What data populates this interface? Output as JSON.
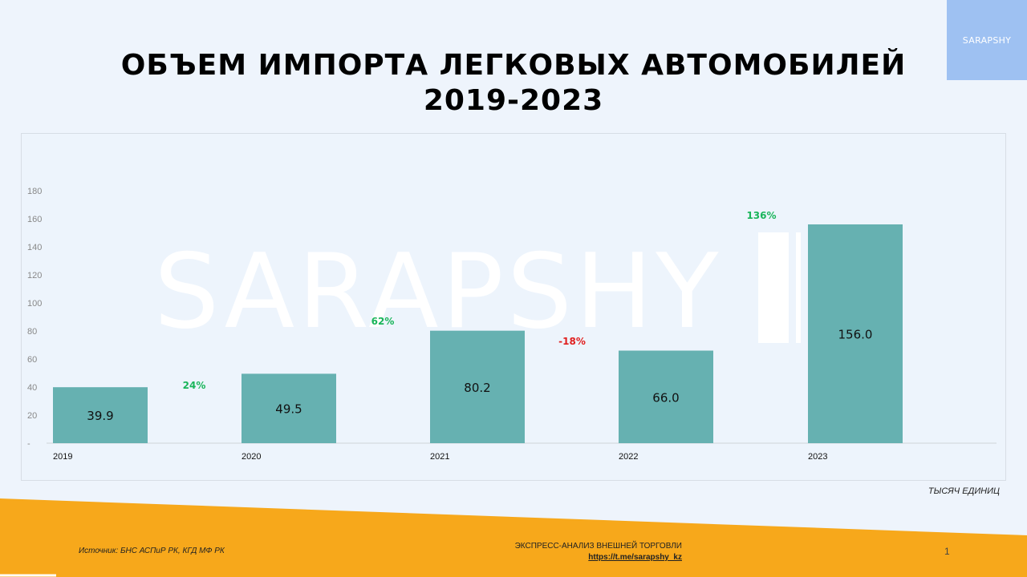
{
  "brand": "SARAPSHY",
  "title_lines": [
    "Объем импорта легковых автомобилей",
    "2019-2023"
  ],
  "watermark": "SARAPSHY",
  "units_label": "ТЫСЯЧ ЕДИНИЦ",
  "footer": {
    "source": "Источник:  БНС АСПиР РК, КГД МФ РК",
    "caption": "ЭКСПРЕСС-АНАЛИЗ  ВНЕШНЕЙ  ТОРГОВЛИ",
    "link": "https://t.me/sarapshy_kz",
    "page": "1"
  },
  "colors": {
    "bar": "#66b1b1",
    "positive": "#1ab55a",
    "negative": "#e02020",
    "footer_band": "#f7a81b",
    "logo_bg": "#9ec1f2"
  },
  "chart_data": {
    "type": "bar",
    "categories": [
      "2019",
      "2020",
      "2021",
      "2022",
      "2023"
    ],
    "values": [
      39.9,
      49.5,
      80.2,
      66.0,
      156.0
    ],
    "value_labels": [
      "39.9",
      "49.5",
      "80.2",
      "66.0",
      "156.0"
    ],
    "yticks": [
      "-",
      "20",
      "40",
      "60",
      "80",
      "100",
      "120",
      "140",
      "160",
      "180"
    ],
    "ylim": [
      0,
      180
    ],
    "changes": [
      {
        "label": "24%",
        "sign": "positive"
      },
      {
        "label": "62%",
        "sign": "positive"
      },
      {
        "label": "-18%",
        "sign": "negative"
      },
      {
        "label": "136%",
        "sign": "positive"
      }
    ],
    "grid": false,
    "legend": "none"
  }
}
